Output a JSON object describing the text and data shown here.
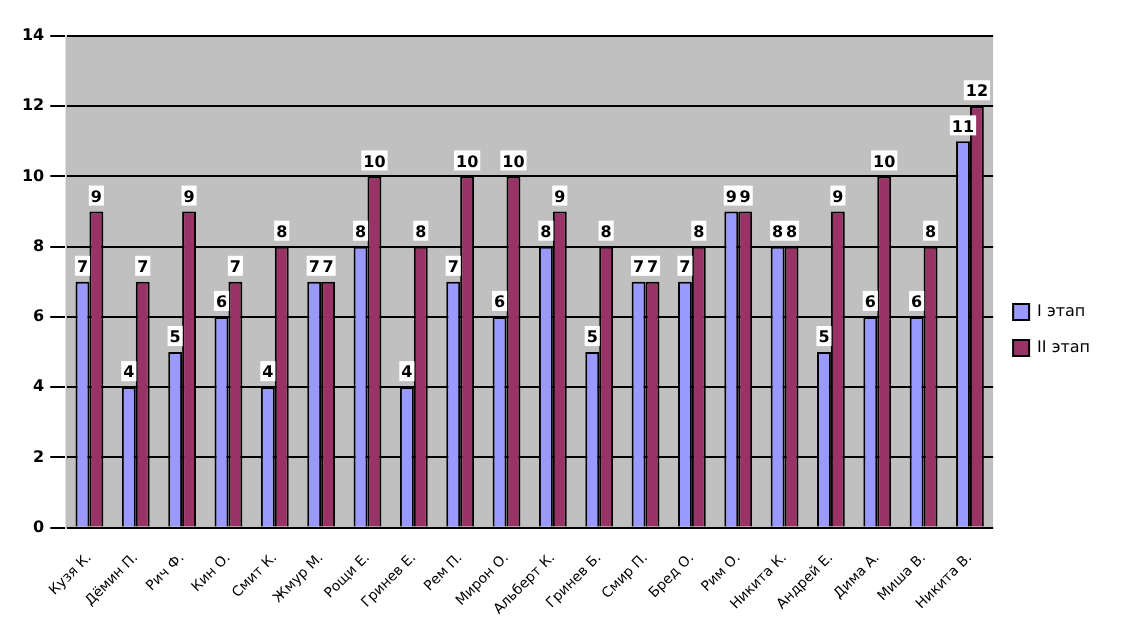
{
  "chart_data": {
    "type": "bar",
    "categories": [
      "Кузя К.",
      "Дёмин П.",
      "Рич Ф.",
      "Кин О.",
      "Смит К.",
      "Жмур М.",
      "Рощи Е.",
      "Гринев Е.",
      "Рем П.",
      "Мирон О.",
      "Альберт К.",
      "Гринев Б.",
      "Смир П.",
      "Бред О.",
      "Рим О.",
      "Никита К.",
      "Андрей Е.",
      "Дима А.",
      "Миша В.",
      "Никита В."
    ],
    "series": [
      {
        "name": "I этап",
        "color": "#9999ff",
        "values": [
          7,
          4,
          5,
          6,
          4,
          7,
          8,
          4,
          7,
          6,
          8,
          5,
          7,
          7,
          9,
          8,
          5,
          6,
          6,
          11
        ]
      },
      {
        "name": "II этап",
        "color": "#993366",
        "values": [
          9,
          7,
          9,
          7,
          8,
          7,
          10,
          8,
          10,
          10,
          9,
          8,
          7,
          8,
          9,
          8,
          9,
          10,
          8,
          12
        ]
      }
    ],
    "ylim": [
      0,
      14
    ],
    "yticks": [
      0,
      2,
      4,
      6,
      8,
      10,
      12,
      14
    ],
    "grid": "y",
    "legend": "right",
    "data_labels": true
  }
}
